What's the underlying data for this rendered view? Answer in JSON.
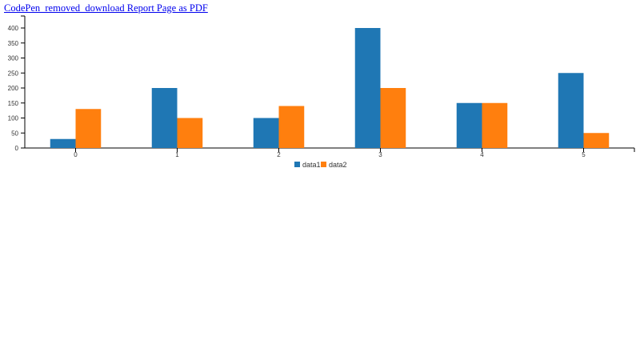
{
  "link": {
    "label": "CodePen_removed_download Report Page as PDF"
  },
  "chart_data": {
    "type": "bar",
    "title": "",
    "xlabel": "",
    "ylabel": "",
    "categories": [
      "0",
      "1",
      "2",
      "3",
      "4",
      "5"
    ],
    "series": [
      {
        "name": "data1",
        "color": "#1f77b4",
        "values": [
          30,
          200,
          100,
          400,
          150,
          250
        ]
      },
      {
        "name": "data2",
        "color": "#ff7f0e",
        "values": [
          130,
          100,
          140,
          200,
          150,
          50
        ]
      }
    ],
    "yticks": [
      "0",
      "50",
      "100",
      "150",
      "200",
      "250",
      "300",
      "350",
      "400"
    ],
    "ylim": [
      0,
      440
    ],
    "grid": false,
    "legend": "bottom"
  }
}
